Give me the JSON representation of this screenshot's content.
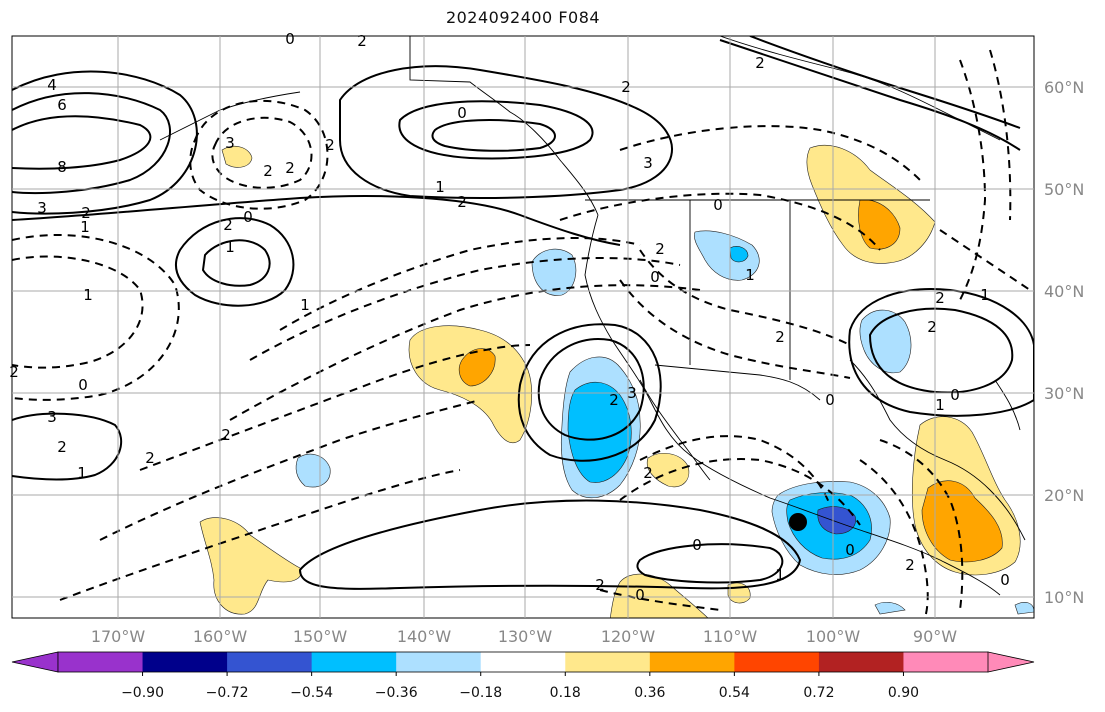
{
  "title": "2024092400 F084",
  "map": {
    "lon_ticks": [
      "170°W",
      "160°W",
      "150°W",
      "140°W",
      "130°W",
      "120°W",
      "110°W",
      "100°W",
      "90°W"
    ],
    "lat_ticks": [
      "60°N",
      "50°N",
      "40°N",
      "30°N",
      "20°N",
      "10°N"
    ],
    "marker": "black-dot"
  },
  "contour_labels": [
    "4",
    "6",
    "8",
    "3",
    "2",
    "1",
    "0",
    "2",
    "3",
    "2",
    "2",
    "2",
    "1",
    "2",
    "0",
    "3",
    "2",
    "1",
    "2",
    "2",
    "2",
    "0",
    "1",
    "1",
    "2",
    "1",
    "0",
    "2",
    "2",
    "3",
    "0",
    "2",
    "0",
    "2",
    "0",
    "1",
    "0",
    "2",
    "1",
    "2",
    "2",
    "3",
    "2",
    "0",
    "1",
    "0",
    "0",
    "2",
    "2",
    "0",
    "1"
  ],
  "colorbar": {
    "colors": [
      "#9932CC",
      "#9932CC",
      "#00008B",
      "#3454D1",
      "#00BFFF",
      "#ADE0FF",
      "#FFFFFF",
      "#FFE88C",
      "#FFA500",
      "#FF4500",
      "#B22222",
      "#FF8AB8",
      "#FF8AB8"
    ],
    "tick_labels": [
      "−0.90",
      "−0.72",
      "−0.54",
      "−0.36",
      "−0.18",
      "0.18",
      "0.36",
      "0.54",
      "0.72",
      "0.90"
    ]
  },
  "fill_colors": {
    "light_yellow": "#FFE88C",
    "orange": "#FFA500",
    "light_blue": "#ADE0FF",
    "sky_blue": "#00BFFF",
    "royal_blue": "#3454D1"
  }
}
